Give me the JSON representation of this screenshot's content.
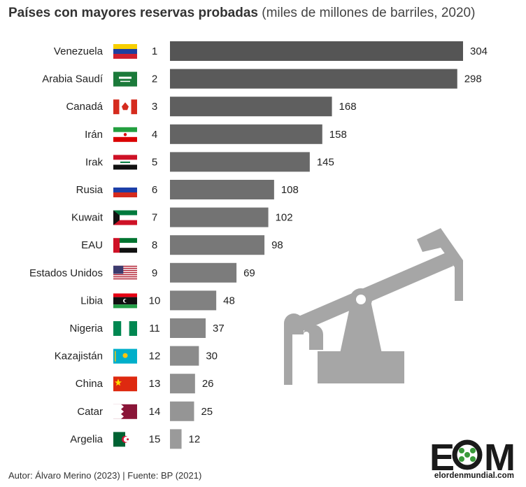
{
  "title": {
    "main": "Países con mayores reservas probadas",
    "sub": "(miles de millones de barriles, 2020)"
  },
  "chart_data": {
    "type": "bar",
    "orientation": "horizontal",
    "categories": [
      "Venezuela",
      "Arabia Saudí",
      "Canadá",
      "Irán",
      "Irak",
      "Rusia",
      "Kuwait",
      "EAU",
      "Estados Unidos",
      "Libia",
      "Nigeria",
      "Kazajistán",
      "China",
      "Catar",
      "Argelia"
    ],
    "ranks": [
      "1",
      "2",
      "3",
      "4",
      "5",
      "6",
      "7",
      "8",
      "9",
      "10",
      "11",
      "12",
      "13",
      "14",
      "15"
    ],
    "values": [
      304,
      298,
      168,
      158,
      145,
      108,
      102,
      98,
      69,
      48,
      37,
      30,
      26,
      25,
      12
    ],
    "flags": [
      "venezuela-flag",
      "saudi-arabia-flag",
      "canada-flag",
      "iran-flag",
      "iraq-flag",
      "russia-flag",
      "kuwait-flag",
      "uae-flag",
      "usa-flag",
      "libya-flag",
      "nigeria-flag",
      "kazakhstan-flag",
      "china-flag",
      "qatar-flag",
      "algeria-flag"
    ],
    "xlim": [
      0,
      304
    ],
    "bar_color_start": "#555555",
    "bar_color_end": "#9a9a9a",
    "grid": false,
    "legend": "none",
    "decoration": "oil-pumpjack-icon"
  },
  "footer": "Autor: Álvaro Merino (2023) | Fuente: BP (2021)",
  "logo": {
    "letters": [
      "E",
      "M"
    ],
    "subtitle": "elordenmundial.com",
    "accent_color": "#3a9a3a"
  }
}
